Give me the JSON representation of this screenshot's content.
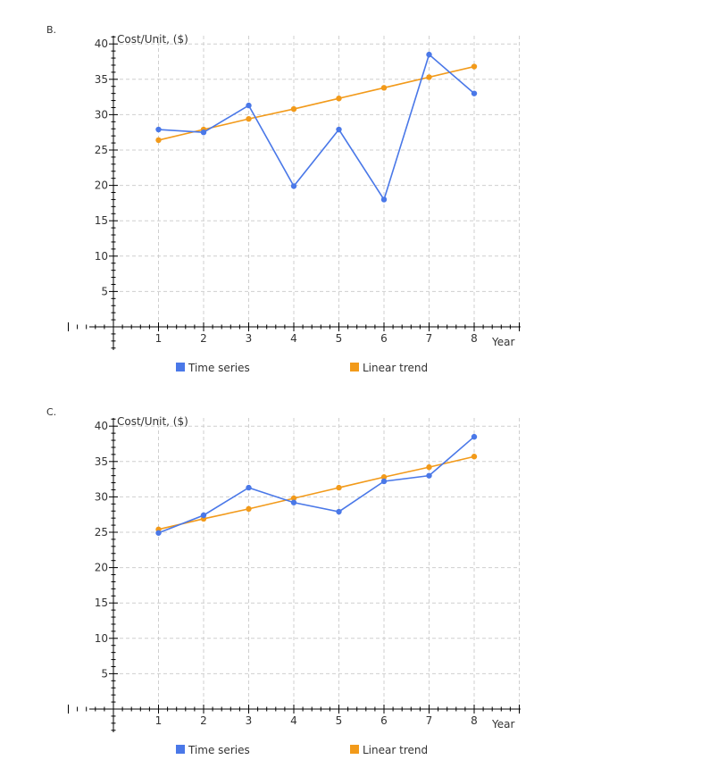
{
  "panels": [
    {
      "letter": "B.",
      "chart_data": {
        "type": "line",
        "ylabel": "Cost/Unit,  ($)",
        "xlabel": "Year",
        "x": [
          1,
          2,
          3,
          4,
          5,
          6,
          7,
          8
        ],
        "xlim": [
          0,
          9
        ],
        "ylim": [
          0,
          40
        ],
        "yticks": [
          5,
          10,
          15,
          20,
          25,
          30,
          35,
          40
        ],
        "grid": true,
        "legend_position": "bottom",
        "series": [
          {
            "name": "Time   series",
            "color": "#4a78e8",
            "values": [
              27.9,
              27.5,
              31.3,
              19.9,
              27.9,
              18.0,
              38.5,
              33.0
            ]
          },
          {
            "name": "Linear   trend",
            "color": "#f29a1a",
            "values": [
              26.4,
              27.9,
              29.4,
              30.8,
              32.3,
              33.8,
              35.3,
              36.8
            ]
          }
        ]
      }
    },
    {
      "letter": "C.",
      "chart_data": {
        "type": "line",
        "ylabel": "Cost/Unit,  ($)",
        "xlabel": "Year",
        "x": [
          1,
          2,
          3,
          4,
          5,
          6,
          7,
          8
        ],
        "xlim": [
          0,
          9
        ],
        "ylim": [
          0,
          40
        ],
        "yticks": [
          5,
          10,
          15,
          20,
          25,
          30,
          35,
          40
        ],
        "grid": true,
        "legend_position": "bottom",
        "series": [
          {
            "name": "Time   series",
            "color": "#4a78e8",
            "values": [
              24.9,
              27.4,
              31.3,
              29.2,
              27.9,
              32.2,
              33.0,
              38.5
            ]
          },
          {
            "name": "Linear   trend",
            "color": "#f29a1a",
            "values": [
              25.4,
              26.9,
              28.3,
              29.8,
              31.3,
              32.8,
              34.2,
              35.7
            ]
          }
        ]
      }
    }
  ]
}
